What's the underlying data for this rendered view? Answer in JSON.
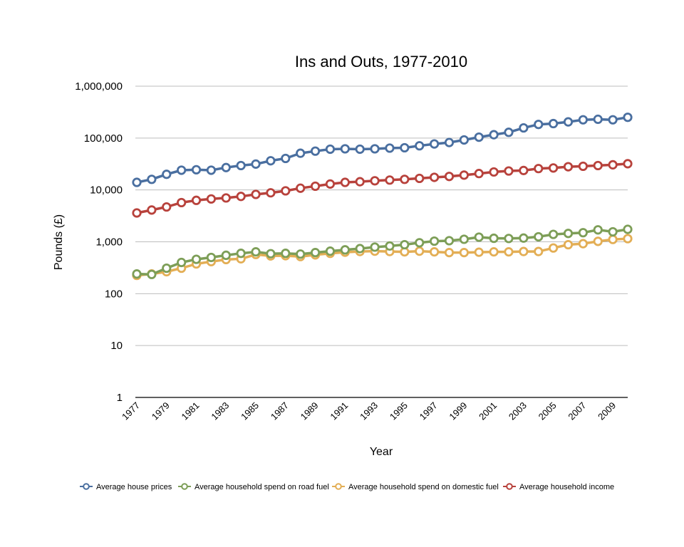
{
  "chart_data": {
    "type": "line",
    "title": "Ins and Outs, 1977-2010",
    "xlabel": "Year",
    "ylabel": "Pounds (£)",
    "yscale": "log",
    "ylim": [
      1,
      1000000
    ],
    "grid": "horizontal",
    "legend_position": "bottom",
    "y_ticks": [
      1,
      10,
      100,
      1000,
      10000,
      100000,
      1000000
    ],
    "y_tick_labels": [
      "1",
      "10",
      "100",
      "1,000",
      "10,000",
      "100,000",
      "1,000,000"
    ],
    "x": [
      1977,
      1978,
      1979,
      1980,
      1981,
      1982,
      1983,
      1984,
      1985,
      1986,
      1987,
      1988,
      1989,
      1990,
      1991,
      1992,
      1993,
      1994,
      1995,
      1996,
      1997,
      1998,
      1999,
      2000,
      2001,
      2002,
      2003,
      2004,
      2005,
      2006,
      2007,
      2008,
      2009,
      2010
    ],
    "x_tick_labels": [
      "1977",
      "1979",
      "1981",
      "1983",
      "1985",
      "1987",
      "1989",
      "1991",
      "1993",
      "1995",
      "1997",
      "1999",
      "2001",
      "2003",
      "2005",
      "2007",
      "2009"
    ],
    "series": [
      {
        "name": "Average house prices",
        "color": "#4a6fa0",
        "values": [
          14000,
          16000,
          20000,
          24000,
          24500,
          24000,
          27000,
          29500,
          31500,
          36500,
          40500,
          51000,
          56000,
          61000,
          62000,
          61000,
          62000,
          64000,
          65000,
          71000,
          77000,
          82000,
          92000,
          104000,
          116000,
          129000,
          157000,
          183000,
          190000,
          205000,
          225000,
          230000,
          225000,
          251000
        ]
      },
      {
        "name": "Average household spend on road fuel",
        "color": "#7d9e57",
        "values": [
          240,
          235,
          310,
          400,
          460,
          500,
          550,
          600,
          640,
          590,
          600,
          580,
          620,
          660,
          700,
          740,
          790,
          830,
          880,
          960,
          1030,
          1050,
          1120,
          1230,
          1170,
          1160,
          1180,
          1250,
          1390,
          1450,
          1500,
          1700,
          1560,
          1740
        ]
      },
      {
        "name": "Average household spend on domestic fuel",
        "color": "#e3ae55",
        "values": [
          225,
          240,
          265,
          310,
          375,
          415,
          455,
          470,
          570,
          535,
          540,
          520,
          560,
          600,
          630,
          650,
          660,
          650,
          640,
          660,
          640,
          620,
          620,
          630,
          640,
          640,
          650,
          650,
          760,
          880,
          920,
          1020,
          1110,
          1150
        ]
      },
      {
        "name": "Average household income",
        "color": "#b8423c",
        "values": [
          3600,
          4100,
          4700,
          5700,
          6300,
          6700,
          7000,
          7500,
          8200,
          8800,
          9600,
          10800,
          11800,
          13000,
          14000,
          14400,
          15000,
          15500,
          16000,
          16700,
          17500,
          18200,
          19300,
          20700,
          22200,
          23200,
          23700,
          25800,
          26500,
          28000,
          28600,
          29500,
          30500,
          32000
        ]
      }
    ]
  }
}
